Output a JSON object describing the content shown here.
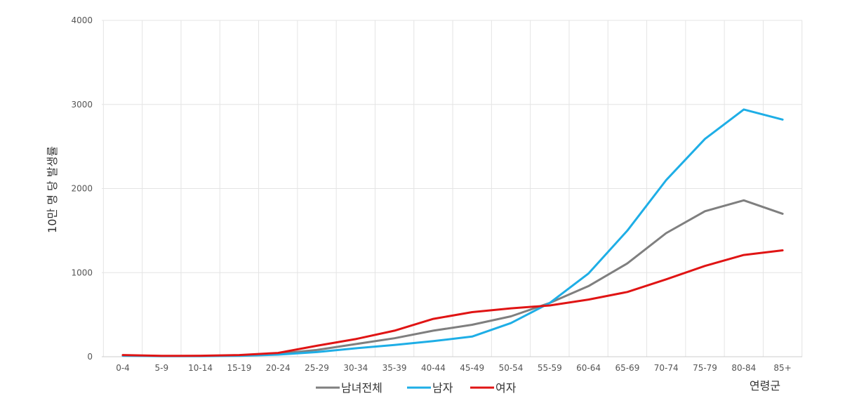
{
  "chart_data": {
    "type": "line",
    "title": "",
    "xlabel": "연령군",
    "ylabel": "10만 명 당 발생률",
    "categories": [
      "0-4",
      "5-9",
      "10-14",
      "15-19",
      "20-24",
      "25-29",
      "30-34",
      "35-39",
      "40-44",
      "45-49",
      "50-54",
      "55-59",
      "60-64",
      "65-69",
      "70-74",
      "75-79",
      "80-84",
      "85+"
    ],
    "ylim": [
      0,
      4000
    ],
    "yticks": [
      "0",
      "1000",
      "2000",
      "3000",
      "4000"
    ],
    "grid": true,
    "legend_position": "bottom",
    "series": [
      {
        "name": "남녀전체",
        "color": "#7f7f7f",
        "values": [
          15,
          8,
          8,
          15,
          35,
          80,
          150,
          220,
          310,
          380,
          480,
          640,
          840,
          1110,
          1470,
          1730,
          1860,
          1700
        ]
      },
      {
        "name": "남자",
        "color": "#1eaee6",
        "values": [
          12,
          6,
          6,
          10,
          25,
          55,
          100,
          140,
          185,
          240,
          400,
          640,
          990,
          1500,
          2100,
          2590,
          2940,
          2820
        ]
      },
      {
        "name": "여자",
        "color": "#e01414",
        "values": [
          20,
          10,
          12,
          20,
          45,
          130,
          210,
          310,
          450,
          530,
          575,
          610,
          680,
          770,
          920,
          1080,
          1210,
          1265
        ]
      }
    ]
  }
}
